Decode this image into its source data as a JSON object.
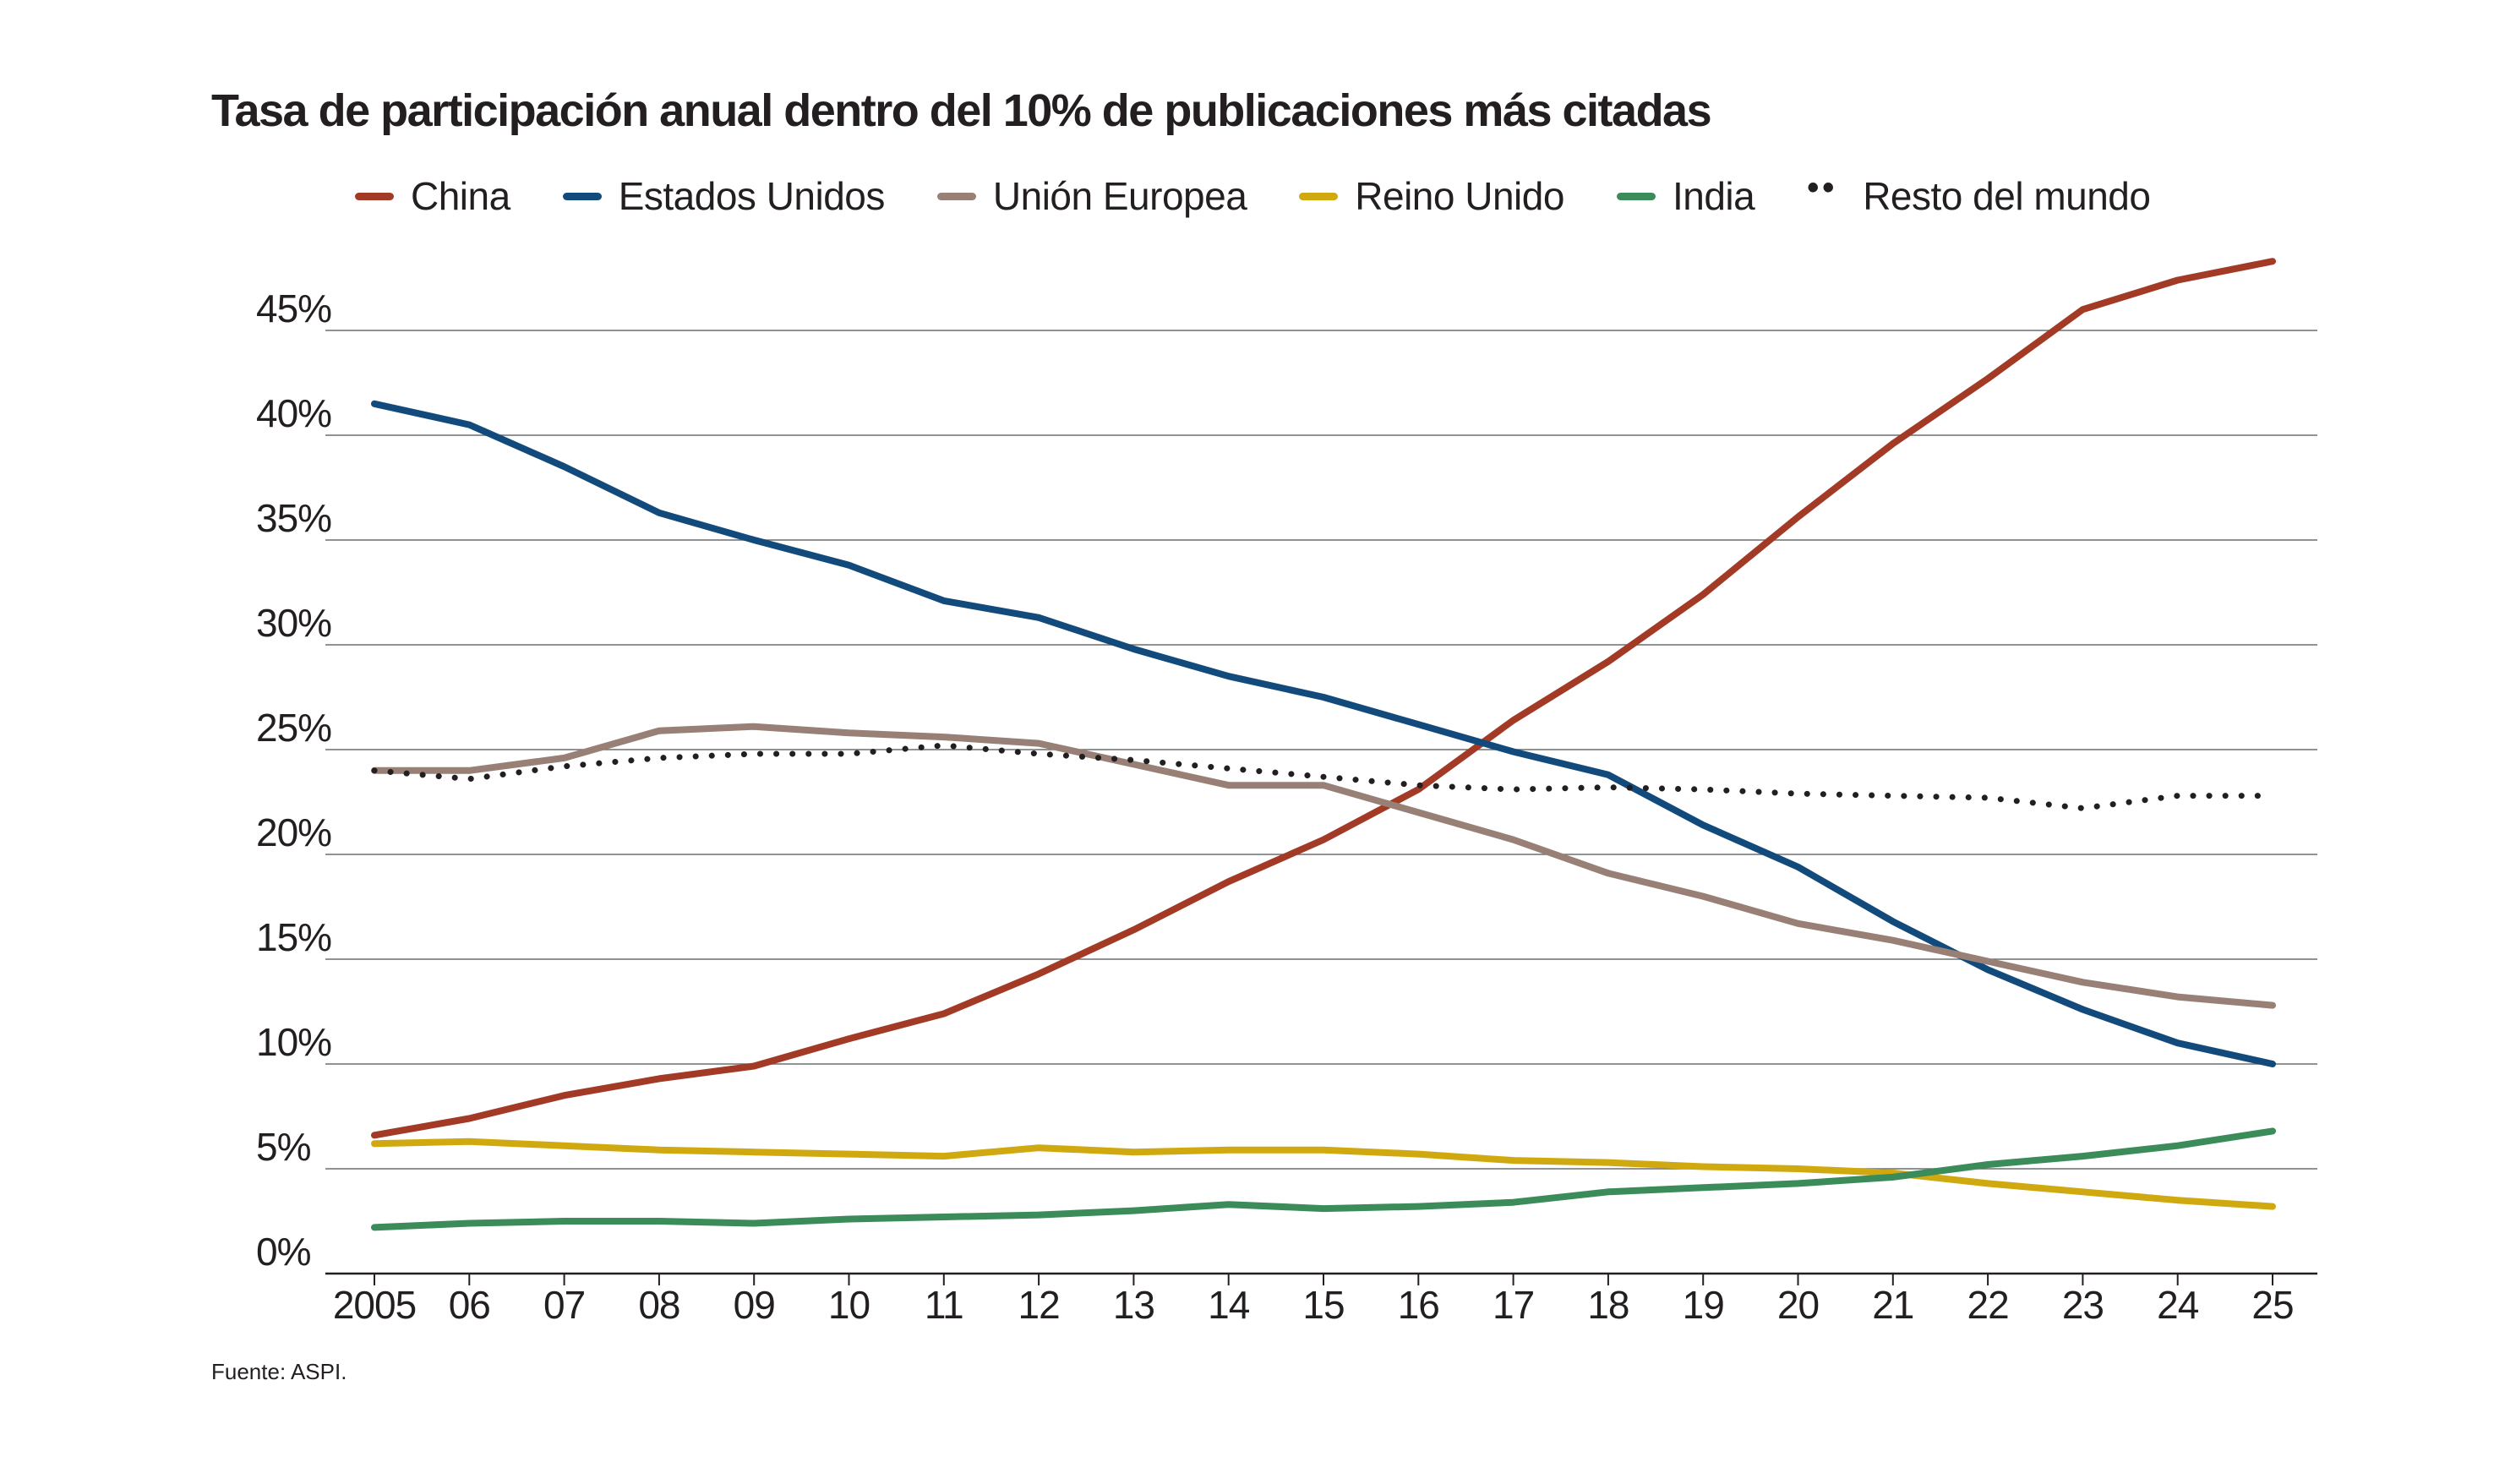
{
  "chart_data": {
    "type": "line",
    "title": "Tasa de participación anual dentro del 10% de publicaciones más citadas",
    "source": "Fuente: ASPI.",
    "x": [
      "2005",
      "06",
      "07",
      "08",
      "09",
      "10",
      "11",
      "12",
      "13",
      "14",
      "15",
      "16",
      "17",
      "18",
      "19",
      "20",
      "21",
      "22",
      "23",
      "24",
      "25"
    ],
    "yticks": [
      "0%",
      "5%",
      "10%",
      "15%",
      "20%",
      "25%",
      "30%",
      "35%",
      "40%",
      "45%"
    ],
    "ylim": [
      0,
      45
    ],
    "grid": true,
    "legend_position": "top",
    "series": [
      {
        "name": "China",
        "color": "#a23a26",
        "style": "solid",
        "values": [
          6.6,
          7.4,
          8.5,
          9.3,
          9.9,
          11.2,
          12.4,
          14.3,
          16.4,
          18.7,
          20.7,
          23.1,
          26.4,
          29.2,
          32.4,
          36.1,
          39.6,
          42.7,
          46.0,
          47.4,
          48.3
        ]
      },
      {
        "name": "Estados Unidos",
        "color": "#134a7c",
        "style": "solid",
        "values": [
          41.5,
          40.5,
          38.5,
          36.3,
          35.0,
          33.8,
          32.1,
          31.3,
          29.8,
          28.5,
          27.5,
          26.2,
          24.9,
          23.8,
          21.4,
          19.4,
          16.8,
          14.5,
          12.6,
          11.0,
          10.0
        ]
      },
      {
        "name": "Unión Europea",
        "color": "#988076",
        "style": "solid",
        "values": [
          24.0,
          24.0,
          24.6,
          25.9,
          26.1,
          25.8,
          25.6,
          25.3,
          24.3,
          23.3,
          23.3,
          22.0,
          20.7,
          19.1,
          18.0,
          16.7,
          15.9,
          14.9,
          13.9,
          13.2,
          12.8
        ]
      },
      {
        "name": "Reino Unido",
        "color": "#d0a911",
        "style": "solid",
        "values": [
          6.2,
          6.3,
          6.1,
          5.9,
          5.8,
          5.7,
          5.6,
          6.0,
          5.8,
          5.9,
          5.9,
          5.7,
          5.4,
          5.3,
          5.1,
          5.0,
          4.8,
          4.3,
          3.9,
          3.5,
          3.2
        ]
      },
      {
        "name": "India",
        "color": "#3c8b5a",
        "style": "solid",
        "values": [
          2.2,
          2.4,
          2.5,
          2.5,
          2.4,
          2.6,
          2.7,
          2.8,
          3.0,
          3.3,
          3.1,
          3.2,
          3.4,
          3.9,
          4.1,
          4.3,
          4.6,
          5.2,
          5.6,
          6.1,
          6.8
        ]
      },
      {
        "name": "Resto del mundo",
        "color": "#231f20",
        "style": "dotted",
        "values": [
          24.0,
          23.6,
          24.2,
          24.6,
          24.8,
          24.8,
          25.2,
          24.8,
          24.5,
          24.1,
          23.7,
          23.3,
          23.1,
          23.2,
          23.1,
          22.9,
          22.8,
          22.7,
          22.2,
          22.8,
          22.8
        ]
      }
    ]
  }
}
